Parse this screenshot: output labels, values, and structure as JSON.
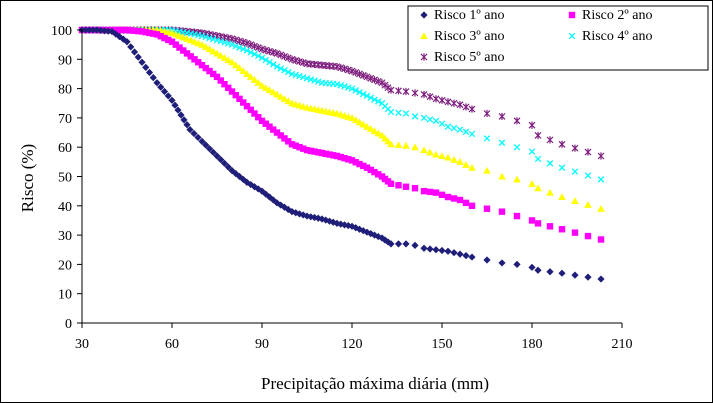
{
  "chart_data": {
    "type": "scatter",
    "xlabel": "Precipitação máxima diária (mm)",
    "ylabel": "Risco (%)",
    "xlim": [
      30,
      210
    ],
    "ylim": [
      0,
      100
    ],
    "xticks": [
      "30",
      "60",
      "90",
      "120",
      "150",
      "180",
      "210"
    ],
    "yticks": [
      "0",
      "10",
      "20",
      "30",
      "40",
      "50",
      "60",
      "70",
      "80",
      "90",
      "100"
    ],
    "legend_position": "top-right",
    "grid": false,
    "series": [
      {
        "name": "Risco 1º ano",
        "color": "#1F1F7A",
        "marker": "diamond",
        "points": [
          [
            30,
            100
          ],
          [
            35,
            100
          ],
          [
            40,
            99.5
          ],
          [
            45,
            96
          ],
          [
            50,
            89
          ],
          [
            55,
            82
          ],
          [
            60,
            76
          ],
          [
            63,
            71
          ],
          [
            66,
            66
          ],
          [
            70,
            62
          ],
          [
            75,
            57
          ],
          [
            80,
            52
          ],
          [
            85,
            48
          ],
          [
            90,
            45
          ],
          [
            95,
            41
          ],
          [
            100,
            38
          ],
          [
            105,
            36.5
          ],
          [
            110,
            35.5
          ],
          [
            115,
            34
          ],
          [
            120,
            33
          ],
          [
            125,
            31
          ],
          [
            130,
            29
          ],
          [
            133,
            27
          ],
          [
            138,
            27
          ],
          [
            141,
            26.5
          ],
          [
            144,
            25.5
          ],
          [
            148,
            25
          ],
          [
            152,
            24.5
          ],
          [
            156,
            23.5
          ],
          [
            160,
            22.5
          ],
          [
            165,
            21.5
          ],
          [
            170,
            20.5
          ],
          [
            175,
            20
          ],
          [
            180,
            19
          ],
          [
            182,
            18
          ],
          [
            190,
            17
          ],
          [
            203,
            15
          ]
        ]
      },
      {
        "name": "Risco 2º ano",
        "color": "#FF00FF",
        "marker": "square",
        "points": [
          [
            30,
            100
          ],
          [
            40,
            100
          ],
          [
            45,
            100
          ],
          [
            50,
            99.5
          ],
          [
            55,
            98.5
          ],
          [
            60,
            96
          ],
          [
            65,
            92
          ],
          [
            70,
            88
          ],
          [
            75,
            84
          ],
          [
            80,
            79
          ],
          [
            85,
            74
          ],
          [
            90,
            69
          ],
          [
            95,
            65
          ],
          [
            100,
            61
          ],
          [
            105,
            59
          ],
          [
            110,
            58
          ],
          [
            115,
            57
          ],
          [
            120,
            55.5
          ],
          [
            125,
            53
          ],
          [
            130,
            50
          ],
          [
            133,
            47.5
          ],
          [
            138,
            46.5
          ],
          [
            141,
            46
          ],
          [
            144,
            45
          ],
          [
            148,
            44.5
          ],
          [
            152,
            43
          ],
          [
            156,
            42
          ],
          [
            160,
            40
          ],
          [
            165,
            39
          ],
          [
            170,
            38
          ],
          [
            175,
            36.5
          ],
          [
            180,
            35
          ],
          [
            182,
            34
          ],
          [
            190,
            32
          ],
          [
            203,
            28.5
          ]
        ]
      },
      {
        "name": "Risco 3º ano",
        "color": "#FFFF00",
        "marker": "triangle",
        "points": [
          [
            30,
            100
          ],
          [
            45,
            100
          ],
          [
            55,
            100
          ],
          [
            60,
            99
          ],
          [
            65,
            97
          ],
          [
            70,
            95
          ],
          [
            75,
            92
          ],
          [
            80,
            89
          ],
          [
            85,
            85
          ],
          [
            90,
            81
          ],
          [
            95,
            78
          ],
          [
            100,
            75
          ],
          [
            105,
            73.5
          ],
          [
            110,
            72.5
          ],
          [
            115,
            71.5
          ],
          [
            120,
            70
          ],
          [
            125,
            67
          ],
          [
            130,
            64
          ],
          [
            133,
            61
          ],
          [
            138,
            60.5
          ],
          [
            141,
            60
          ],
          [
            144,
            59
          ],
          [
            148,
            57.5
          ],
          [
            152,
            56.5
          ],
          [
            156,
            55
          ],
          [
            160,
            53
          ],
          [
            165,
            52
          ],
          [
            170,
            50
          ],
          [
            175,
            49
          ],
          [
            180,
            47.5
          ],
          [
            182,
            46
          ],
          [
            190,
            43
          ],
          [
            203,
            39
          ]
        ]
      },
      {
        "name": "Risco 4º ano",
        "color": "#00FFFF",
        "marker": "x",
        "points": [
          [
            30,
            100
          ],
          [
            45,
            100
          ],
          [
            60,
            100
          ],
          [
            65,
            99
          ],
          [
            70,
            98
          ],
          [
            75,
            96.5
          ],
          [
            80,
            95
          ],
          [
            85,
            93
          ],
          [
            90,
            90.5
          ],
          [
            95,
            87.5
          ],
          [
            100,
            85
          ],
          [
            105,
            83.5
          ],
          [
            110,
            82
          ],
          [
            115,
            81.5
          ],
          [
            120,
            80
          ],
          [
            125,
            77.5
          ],
          [
            130,
            75
          ],
          [
            133,
            72
          ],
          [
            138,
            71.5
          ],
          [
            141,
            70.5
          ],
          [
            144,
            70
          ],
          [
            148,
            69
          ],
          [
            152,
            67
          ],
          [
            156,
            66
          ],
          [
            160,
            64.5
          ],
          [
            165,
            63
          ],
          [
            170,
            61.5
          ],
          [
            175,
            60
          ],
          [
            180,
            58.5
          ],
          [
            182,
            56
          ],
          [
            190,
            53
          ],
          [
            203,
            49
          ]
        ]
      },
      {
        "name": "Risco 5º ano",
        "color": "#7F1F7F",
        "marker": "star",
        "points": [
          [
            30,
            100
          ],
          [
            45,
            100
          ],
          [
            60,
            100
          ],
          [
            65,
            99.5
          ],
          [
            70,
            99
          ],
          [
            75,
            98
          ],
          [
            80,
            97
          ],
          [
            85,
            95.5
          ],
          [
            90,
            93.5
          ],
          [
            95,
            92
          ],
          [
            100,
            90
          ],
          [
            105,
            88.5
          ],
          [
            110,
            88
          ],
          [
            115,
            87.5
          ],
          [
            120,
            86
          ],
          [
            125,
            84
          ],
          [
            130,
            82
          ],
          [
            133,
            79.5
          ],
          [
            138,
            79
          ],
          [
            141,
            78.5
          ],
          [
            144,
            78
          ],
          [
            148,
            76.5
          ],
          [
            152,
            75.5
          ],
          [
            156,
            74.5
          ],
          [
            160,
            73
          ],
          [
            165,
            71.5
          ],
          [
            170,
            70.5
          ],
          [
            175,
            69
          ],
          [
            180,
            67.5
          ],
          [
            182,
            64
          ],
          [
            190,
            61
          ],
          [
            203,
            57
          ]
        ]
      }
    ]
  }
}
